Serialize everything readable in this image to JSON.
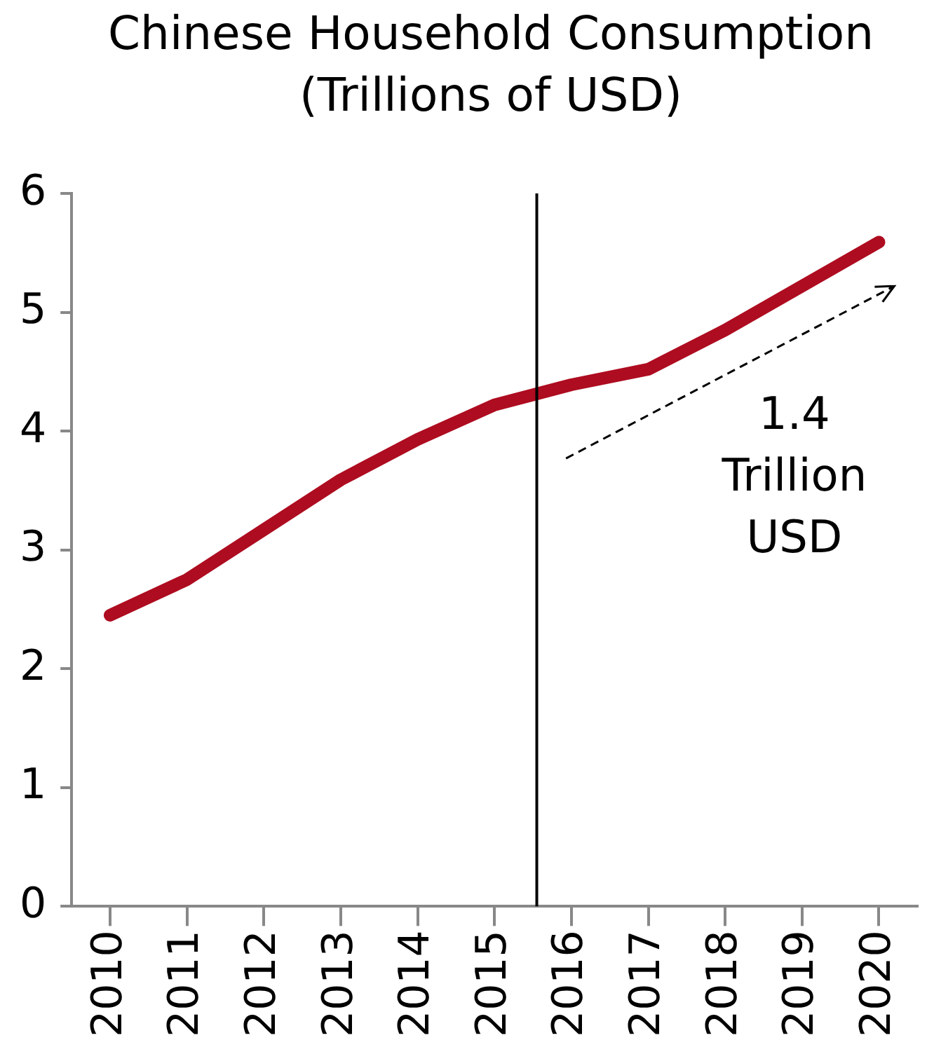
{
  "chart_data": {
    "type": "line",
    "title": "Chinese Household Consumption (Trillions of USD)",
    "x": [
      2010,
      2011,
      2012,
      2013,
      2014,
      2015,
      2016,
      2017,
      2018,
      2019,
      2020
    ],
    "series": [
      {
        "color": "#ae0c20",
        "values": [
          2.45,
          2.75,
          3.17,
          3.59,
          3.93,
          4.22,
          4.39,
          4.52,
          4.85,
          5.22,
          5.59
        ]
      }
    ],
    "xlim": [
      2009.5,
      2020.5
    ],
    "xticks": [
      2010,
      2011,
      2012,
      2013,
      2014,
      2015,
      2016,
      2017,
      2018,
      2019,
      2020
    ],
    "ylim": [
      0,
      6
    ],
    "yticks": [
      0,
      1,
      2,
      3,
      4,
      5,
      6
    ],
    "ref_lines": [
      {
        "axis": "x",
        "value": 2015.55,
        "color": "#000000"
      }
    ],
    "annotations": [
      "1.4 Trillion USD"
    ],
    "grid": false,
    "legend": false,
    "marker": "none",
    "line_style": "solid"
  }
}
